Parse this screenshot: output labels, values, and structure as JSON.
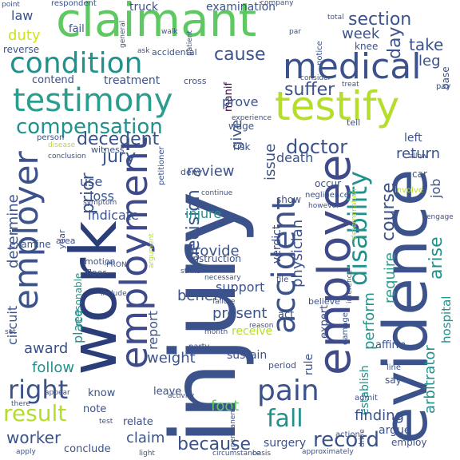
{
  "palette": {
    "background": "#ffffff",
    "dark_blue": "#3b528b",
    "navy": "#2c3e7a",
    "teal": "#21918c",
    "teal_light": "#2a9d8f",
    "green": "#5ec962",
    "lime": "#b5de2b",
    "yellow_green": "#d2e21b",
    "purple": "#440154",
    "indigo": "#482878",
    "grey_blue": "#3e4a89"
  },
  "words": {
    "injury": "injury",
    "work": "work",
    "claimant": "claimant",
    "evidence": "evidence",
    "employee": "employee",
    "employment": "employment",
    "testify": "testify",
    "medical": "medical",
    "testimony": "testimony",
    "condition": "condition",
    "employer": "employer",
    "accident": "accident",
    "disability": "disability",
    "pain": "pain",
    "compensation": "compensation",
    "right": "right",
    "decedent": "decedent",
    "doctor": "doctor",
    "fall": "fall",
    "result": "result",
    "record": "record",
    "worker": "worker",
    "award": "award",
    "because": "because",
    "claim": "claim",
    "duty": "duty",
    "law": "law",
    "truck": "truck",
    "examination": "examination",
    "section": "section",
    "day": "day",
    "take": "take",
    "leg": "leg",
    "week": "week",
    "knee": "knee",
    "cause": "cause",
    "suffer": "suffer",
    "treatment": "treatment",
    "prove": "prove",
    "jury": "jury",
    "prior": "prior",
    "issue": "issue",
    "course": "course",
    "require": "require",
    "perform": "perform",
    "arise": "arise",
    "return": "return",
    "job": "job",
    "review": "review",
    "decision": "decision",
    "provide": "provide",
    "physician": "physician",
    "death": "death",
    "injure": "injure",
    "indicate": "indicate",
    "determine": "determine",
    "circuit": "circuit",
    "loss": "loss",
    "use": "use",
    "support": "support",
    "present": "present",
    "report": "report",
    "benefit": "benefit",
    "weight": "weight",
    "follow": "follow",
    "receive": "receive",
    "sustain": "sustain",
    "finding": "finding",
    "affirm": "affirm",
    "arbitrator": "arbitrator",
    "hospital": "hospital",
    "surgery": "surgery",
    "conclude": "conclude",
    "relate": "relate",
    "foot": "foot",
    "leave": "leave",
    "note": "note",
    "know": "know",
    "place": "place",
    "instruction": "instruction",
    "give": "give",
    "show": "show",
    "verdict": "verdict",
    "manif": "manif",
    "wage": "wage",
    "contend": "contend",
    "reverse": "reverse",
    "fail": "fail",
    "left": "left",
    "say": "say",
    "argue": "argue",
    "establish": "establish",
    "employ": "employ",
    "expert": "expert",
    "rule": "rule",
    "act": "act",
    "period": "period",
    "risk": "risk",
    "car": "car",
    "allow": "allow",
    "reasonable": "reasonable",
    "floor": "floor",
    "motion": "motion",
    "examine": "examine",
    "respondent": "respondent",
    "general": "general",
    "accidental": "accidental",
    "company": "company",
    "total": "total",
    "notice": "notice",
    "consider": "consider",
    "cross": "cross",
    "experience": "experience",
    "tell": "tell",
    "petitioner": "petitioner",
    "witness": "witness",
    "person": "person",
    "disease": "disease",
    "conclusion": "conclusion",
    "deny": "deny",
    "occur": "occur",
    "negligence": "negligence",
    "however": "however",
    "involve": "involve",
    "continue": "continue",
    "pron": "-PRON-",
    "area": "area",
    "year": "year",
    "include": "include",
    "party": "party",
    "reason": "reason",
    "file": "file",
    "believe": "believe",
    "inference": "inference",
    "damage": "damage",
    "line": "line",
    "admit": "admit",
    "permanent": "permanent",
    "activity": "activity",
    "action": "action",
    "drive": "drive",
    "approximately": "approximately",
    "apply": "apply",
    "there": "there",
    "point": "point",
    "symptom": "symptom",
    "base": "base",
    "treat": "treat",
    "patient": "patient",
    "par": "par",
    "walk": "walk",
    "ask": "ask",
    "pay": "pay",
    "engage": "engage",
    "strike": "strike",
    "necessary": "necessary",
    "month": "month",
    "failure": "failure",
    "argument": "argument",
    "determination": "determination",
    "set": "set",
    "light": "light",
    "test": "test",
    "circumstance": "circumstance",
    "basis": "basis",
    "appear": "appear"
  }
}
